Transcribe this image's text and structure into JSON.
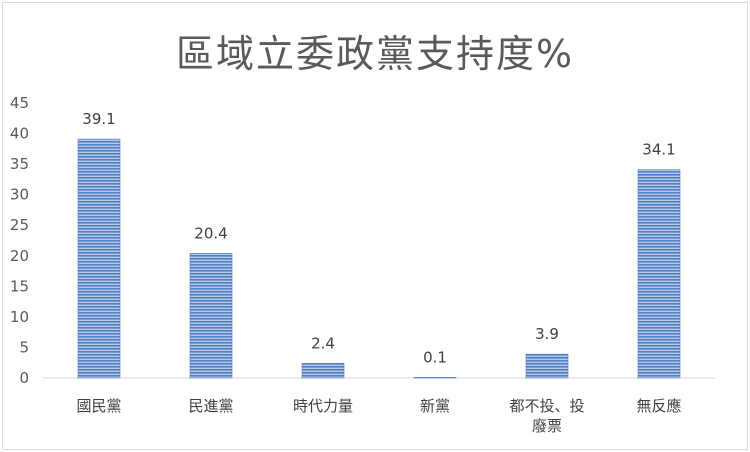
{
  "chart_data": {
    "type": "bar",
    "title": "區域立委政黨支持度%",
    "xlabel": "",
    "ylabel": "",
    "ylim": [
      0,
      45
    ],
    "yticks": [
      0,
      5,
      10,
      15,
      20,
      25,
      30,
      35,
      40,
      45
    ],
    "grid": false,
    "legend": "none",
    "categories": [
      [
        "國民黨"
      ],
      [
        "民進黨"
      ],
      [
        "時代力量"
      ],
      [
        "新黨"
      ],
      [
        "都不投、投",
        "廢票"
      ],
      [
        "無反應"
      ]
    ],
    "values": [
      39.1,
      20.4,
      2.4,
      0.1,
      3.9,
      34.1
    ],
    "data_labels": [
      "39.1",
      "20.4",
      "2.4",
      "0.1",
      "3.9",
      "34.1"
    ],
    "bar_color": "#5b87c7"
  }
}
